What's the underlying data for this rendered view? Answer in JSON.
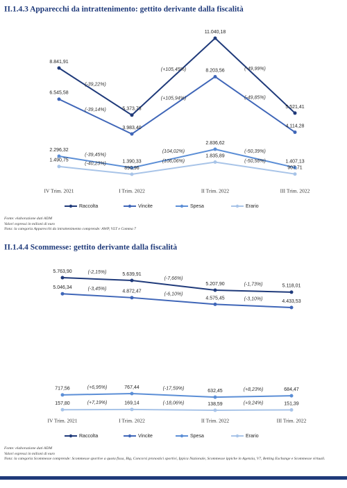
{
  "chart_data": [
    {
      "type": "line",
      "title": "II.1.4.3   Apparecchi da intrattenimento: gettito derivante dalla fiscalità",
      "categories": [
        "IV Trim. 2021",
        "I Trim. 2022",
        "II Trim. 2022",
        "III Trim. 2022"
      ],
      "legend": "bottom",
      "series": [
        {
          "name": "Raccolta",
          "color": "#1f3a7a",
          "values": [
            8841.91,
            5373.73,
            11040.18,
            5521.41
          ],
          "value_labels": [
            "8.841,91",
            "5.373,73",
            "11.040,18",
            "5.521,41"
          ],
          "change_labels": [
            "(-39,22%)",
            "(+105,45%)",
            "(-49,99%)"
          ]
        },
        {
          "name": "Vincite",
          "color": "#3f66b8",
          "values": [
            6545.58,
            3983.4,
            8203.56,
            4114.28
          ],
          "value_labels": [
            "6.545,58",
            "3.983,40",
            "8.203,56",
            "4.114,28"
          ],
          "change_labels": [
            "(-39,14%)",
            "(+105,94%)",
            "(-49,85%)"
          ]
        },
        {
          "name": "Spesa",
          "color": "#5b8ed6",
          "axis": "y2",
          "values": [
            2296.32,
            1390.33,
            2836.62,
            1407.13
          ],
          "value_labels": [
            "2.296,32",
            "1.390,33",
            "2.836,62",
            "1.407,13"
          ],
          "change_labels": [
            "(-39,45%)",
            "(104,02%)",
            "(-50,39%)"
          ]
        },
        {
          "name": "Erario",
          "color": "#a8c4e8",
          "axis": "y2",
          "values": [
            1490.75,
            890.96,
            1835.89,
            907.71
          ],
          "value_labels": [
            "1.490,75",
            "890,96",
            "1.835,89",
            "907,71"
          ],
          "change_labels": [
            "(-40,23%)",
            "(106,06%)",
            "(-50,56%)"
          ]
        }
      ],
      "notes": [
        "Fonte: elaborazione dati ADM",
        "Valori espressi in milioni di euro",
        "Nota: la categoria Apparecchi da intrattenimento comprende: AWP, VLT e Comma 7"
      ]
    },
    {
      "type": "line",
      "title": "II.1.4.4   Scommesse: gettito derivante dalla fiscalità",
      "categories": [
        "IV Trim. 2021",
        "I Trim. 2022",
        "II Trim. 2022",
        "III Trim. 2022"
      ],
      "legend": "bottom",
      "series": [
        {
          "name": "Raccolta",
          "color": "#1f3a7a",
          "values": [
            5763.9,
            5639.91,
            5207.9,
            5118.01
          ],
          "value_labels": [
            "5.763,90",
            "5.639,91",
            "5.207,90",
            "5.118,01"
          ],
          "change_labels": [
            "(-2,15%)",
            "(-7,66%)",
            "(-1,73%)"
          ]
        },
        {
          "name": "Vincite",
          "color": "#3f66b8",
          "values": [
            5046.34,
            4872.47,
            4575.45,
            4433.53
          ],
          "value_labels": [
            "5.046,34",
            "4.872,47",
            "4.575,45",
            "4.433,53"
          ],
          "change_labels": [
            "(-3,45%)",
            "(-6,10%)",
            "(-3,10%)"
          ]
        },
        {
          "name": "Spesa",
          "color": "#5b8ed6",
          "axis": "y2",
          "values": [
            717.56,
            767.44,
            632.45,
            684.47
          ],
          "value_labels": [
            "717,56",
            "767,44",
            "632,45",
            "684,47"
          ],
          "change_labels": [
            "(+6,95%)",
            "(-17,59%)",
            "(+8,23%)"
          ]
        },
        {
          "name": "Erario",
          "color": "#a8c4e8",
          "axis": "y2",
          "values": [
            157.8,
            169.14,
            138.59,
            151.39
          ],
          "value_labels": [
            "157,80",
            "169,14",
            "138,59",
            "151,39"
          ],
          "change_labels": [
            "(+7,19%)",
            "(-18,06%)",
            "(+9,24%)"
          ]
        }
      ],
      "notes": [
        "Fonte: elaborazione dati ADM",
        "Valori espressi in milioni di euro",
        "Nota: la categoria Scommesse comprende: Scommesse sportive a quota fissa, Big, Concorsi pronostici sportivi, Ippica Nazionale, Scommesse ippiche in Agenzia, V7, Betting Exchange e Scommesse virtuali."
      ]
    }
  ]
}
